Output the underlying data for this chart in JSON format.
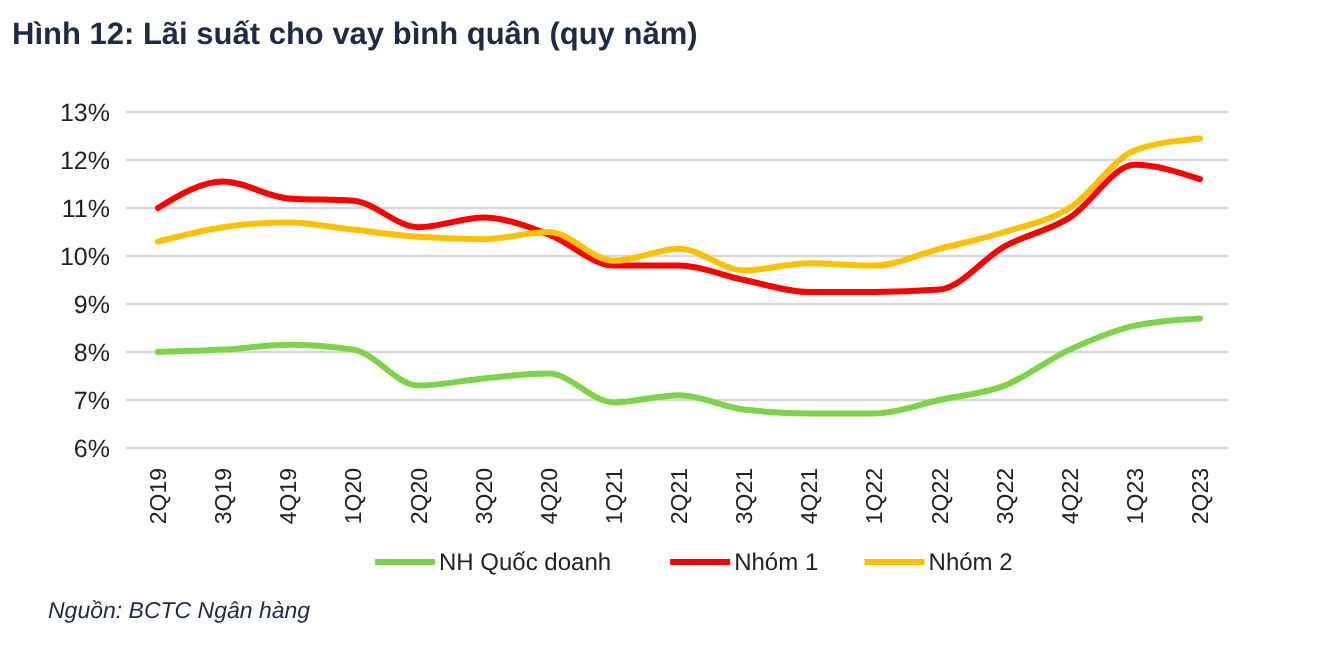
{
  "chart_data": {
    "type": "line",
    "title": "Hình 12: Lãi suất cho vay bình quân (quy năm)",
    "categories": [
      "2Q19",
      "3Q19",
      "4Q19",
      "1Q20",
      "2Q20",
      "3Q20",
      "4Q20",
      "1Q21",
      "2Q21",
      "3Q21",
      "4Q21",
      "1Q22",
      "2Q22",
      "3Q22",
      "4Q22",
      "1Q23",
      "2Q23"
    ],
    "series": [
      {
        "name": "NH Quốc doanh",
        "color": "#7ed348",
        "values": [
          8.0,
          8.05,
          8.15,
          8.05,
          7.3,
          7.45,
          7.55,
          6.95,
          7.1,
          6.8,
          6.72,
          6.72,
          7.0,
          7.3,
          8.05,
          8.55,
          8.7
        ]
      },
      {
        "name": "Nhóm 1",
        "color": "#ff0000",
        "values": [
          11.0,
          11.55,
          11.2,
          11.15,
          10.6,
          10.8,
          10.45,
          9.8,
          9.8,
          9.5,
          9.25,
          9.25,
          9.3,
          10.2,
          10.8,
          11.9,
          11.6
        ]
      },
      {
        "name": "Nhóm 2",
        "color": "#ffc000",
        "values": [
          10.3,
          10.6,
          10.7,
          10.55,
          10.4,
          10.35,
          10.5,
          9.9,
          10.15,
          9.7,
          9.85,
          9.8,
          10.15,
          10.5,
          11.0,
          12.2,
          12.45
        ]
      }
    ],
    "ylim": [
      6,
      13
    ],
    "yticks": [
      {
        "value": 6,
        "label": "6%"
      },
      {
        "value": 7,
        "label": "7%"
      },
      {
        "value": 8,
        "label": "8%"
      },
      {
        "value": 9,
        "label": "9%"
      },
      {
        "value": 10,
        "label": "10%"
      },
      {
        "value": 11,
        "label": "11%"
      },
      {
        "value": 12,
        "label": "12%"
      },
      {
        "value": 13,
        "label": "13%"
      }
    ],
    "grid": "y",
    "legend": "bottom",
    "marker": "none",
    "line_style": "solid",
    "annotations": [
      "Nguồn: BCTC Ngân hàng"
    ]
  }
}
